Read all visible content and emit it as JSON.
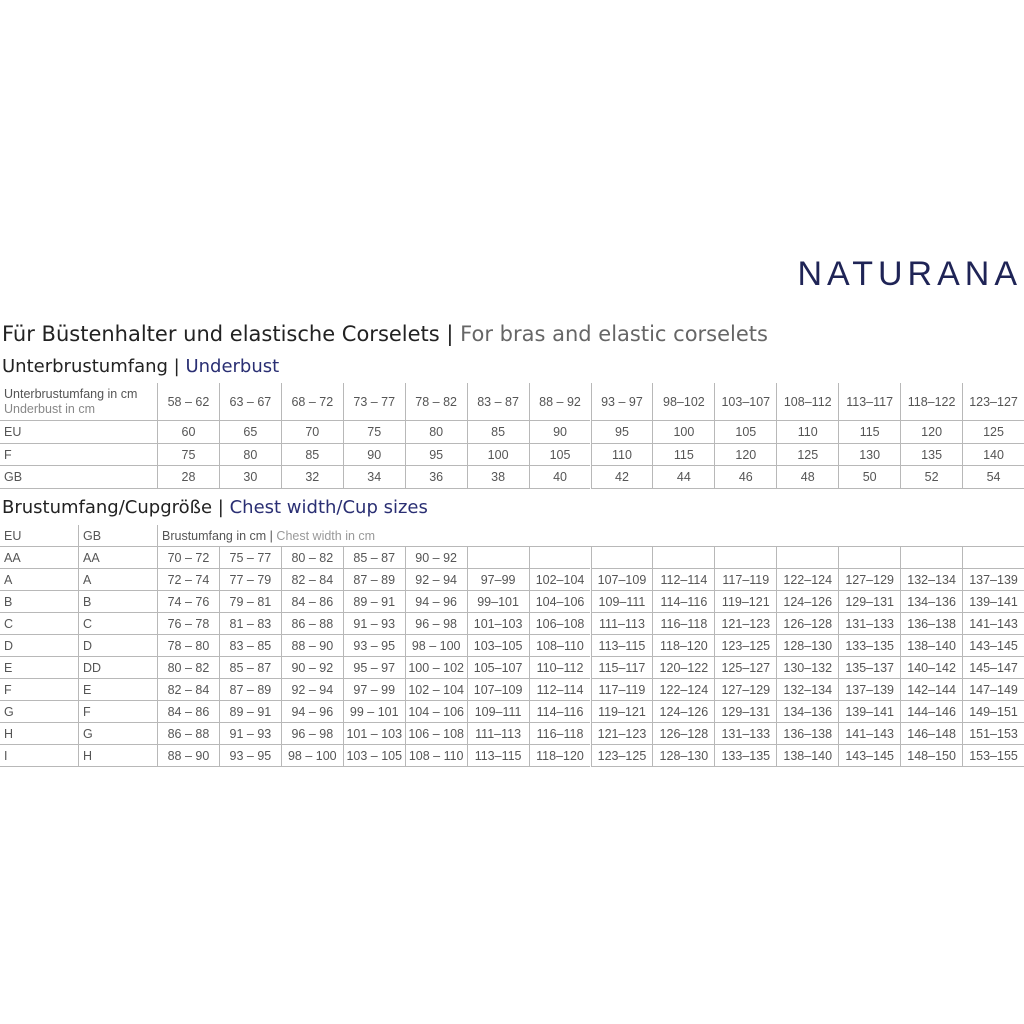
{
  "brand": "NATURANA",
  "title": {
    "de": "Für Büstenhalter und elastische Corselets |",
    "en": "For bras and elastic corselets"
  },
  "underbust": {
    "heading": {
      "de": "Unterbrustumfang |",
      "en": "Underbust"
    },
    "label_de": "Unterbrustumfang in cm",
    "label_en": "Underbust in cm",
    "columns": [
      "58 – 62",
      "63 – 67",
      "68 – 72",
      "73 – 77",
      "78 – 82",
      "83 – 87",
      "88 – 92",
      "93 – 97",
      "98–102",
      "103–107",
      "108–112",
      "113–117",
      "118–122",
      "123–127"
    ],
    "rows": [
      {
        "label": "EU",
        "values": [
          60,
          65,
          70,
          75,
          80,
          85,
          90,
          95,
          100,
          105,
          110,
          115,
          120,
          125
        ]
      },
      {
        "label": "F",
        "values": [
          75,
          80,
          85,
          90,
          95,
          100,
          105,
          110,
          115,
          120,
          125,
          130,
          135,
          140
        ]
      },
      {
        "label": "GB",
        "values": [
          28,
          30,
          32,
          34,
          36,
          38,
          40,
          42,
          44,
          46,
          48,
          50,
          52,
          54
        ]
      }
    ]
  },
  "cups": {
    "heading": {
      "de": "Brustumfang/Cupgröße |",
      "en": "Chest width/Cup sizes"
    },
    "col_eu": "EU",
    "col_gb": "GB",
    "span_de": "Brustumfang in cm |",
    "span_en": "Chest width in cm",
    "rows": [
      {
        "eu": "AA",
        "gb": "AA",
        "values": [
          "70 – 72",
          "75 – 77",
          "80 – 82",
          "85 – 87",
          "90 – 92"
        ]
      },
      {
        "eu": "A",
        "gb": "A",
        "values": [
          "72 – 74",
          "77 – 79",
          "82 – 84",
          "87 – 89",
          "92 – 94",
          "97–99",
          "102–104",
          "107–109",
          "112–114",
          "117–119",
          "122–124",
          "127–129",
          "132–134",
          "137–139"
        ]
      },
      {
        "eu": "B",
        "gb": "B",
        "values": [
          "74 – 76",
          "79 – 81",
          "84 – 86",
          "89 – 91",
          "94 – 96",
          "99–101",
          "104–106",
          "109–111",
          "114–116",
          "119–121",
          "124–126",
          "129–131",
          "134–136",
          "139–141"
        ]
      },
      {
        "eu": "C",
        "gb": "C",
        "values": [
          "76 – 78",
          "81 – 83",
          "86 – 88",
          "91 – 93",
          "96 – 98",
          "101–103",
          "106–108",
          "111–113",
          "116–118",
          "121–123",
          "126–128",
          "131–133",
          "136–138",
          "141–143"
        ]
      },
      {
        "eu": "D",
        "gb": "D",
        "values": [
          "78 – 80",
          "83 – 85",
          "88 – 90",
          "93 – 95",
          "98 – 100",
          "103–105",
          "108–110",
          "113–115",
          "118–120",
          "123–125",
          "128–130",
          "133–135",
          "138–140",
          "143–145"
        ]
      },
      {
        "eu": "E",
        "gb": "DD",
        "values": [
          "80 – 82",
          "85 – 87",
          "90 – 92",
          "95 – 97",
          "100 – 102",
          "105–107",
          "110–112",
          "115–117",
          "120–122",
          "125–127",
          "130–132",
          "135–137",
          "140–142",
          "145–147"
        ]
      },
      {
        "eu": "F",
        "gb": "E",
        "values": [
          "82 – 84",
          "87 – 89",
          "92 – 94",
          "97 – 99",
          "102 – 104",
          "107–109",
          "112–114",
          "117–119",
          "122–124",
          "127–129",
          "132–134",
          "137–139",
          "142–144",
          "147–149"
        ]
      },
      {
        "eu": "G",
        "gb": "F",
        "values": [
          "84 – 86",
          "89 – 91",
          "94 – 96",
          "99 – 101",
          "104 – 106",
          "109–111",
          "114–116",
          "119–121",
          "124–126",
          "129–131",
          "134–136",
          "139–141",
          "144–146",
          "149–151"
        ]
      },
      {
        "eu": "H",
        "gb": "G",
        "values": [
          "86 – 88",
          "91 – 93",
          "96 – 98",
          "101 – 103",
          "106 – 108",
          "111–113",
          "116–118",
          "121–123",
          "126–128",
          "131–133",
          "136–138",
          "141–143",
          "146–148",
          "151–153"
        ]
      },
      {
        "eu": "I",
        "gb": "H",
        "values": [
          "88 – 90",
          "93 – 95",
          "98 – 100",
          "103 – 105",
          "108 – 110",
          "113–115",
          "118–120",
          "123–125",
          "128–130",
          "133–135",
          "138–140",
          "143–145",
          "148–150",
          "153–155"
        ]
      }
    ]
  }
}
